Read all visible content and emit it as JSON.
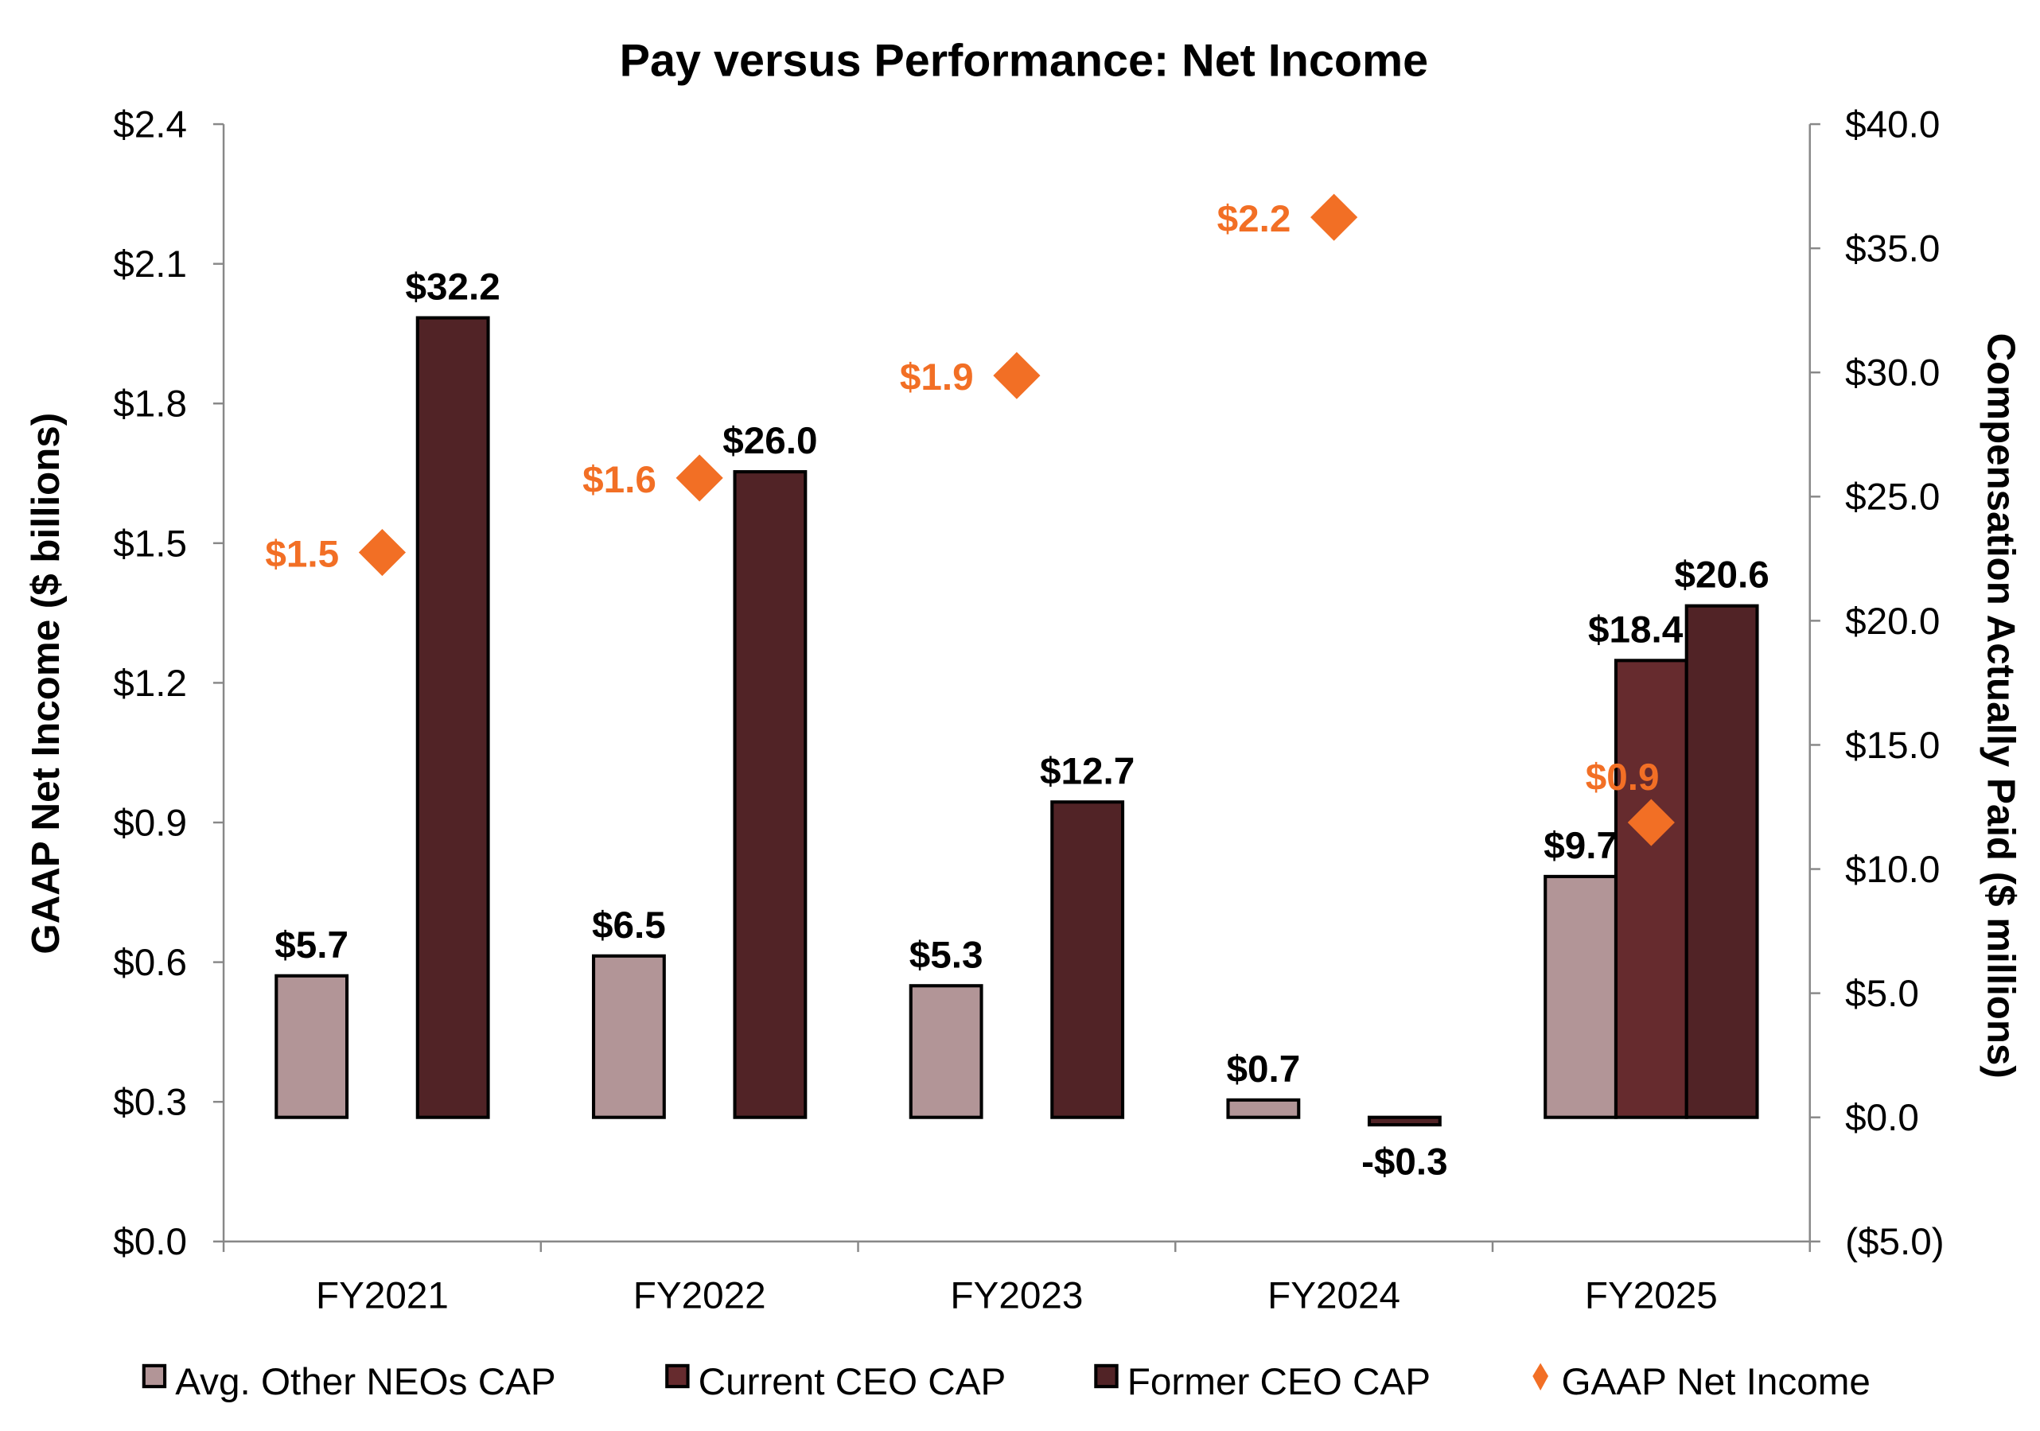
{
  "chart_data": {
    "type": "bar",
    "title": "Pay versus Performance: Net Income",
    "categories": [
      "FY2021",
      "FY2022",
      "FY2023",
      "FY2024",
      "FY2025"
    ],
    "y_left": {
      "label": "GAAP Net Income ($ billions)",
      "range": [
        0,
        2.4
      ],
      "ticks": [
        "$0.0",
        "$0.3",
        "$0.6",
        "$0.9",
        "$1.2",
        "$1.5",
        "$1.8",
        "$2.1",
        "$2.4"
      ]
    },
    "y_right": {
      "label": "Compensation Actually Paid ($ millions)",
      "range": [
        -5,
        40
      ],
      "ticks": [
        "($5.0)",
        "$0.0",
        "$5.0",
        "$10.0",
        "$15.0",
        "$20.0",
        "$25.0",
        "$30.0",
        "$35.0",
        "$40.0"
      ]
    },
    "series": [
      {
        "name": "Avg. Other NEOs CAP",
        "type": "bar",
        "axis": "right",
        "color": "#b29597",
        "values": [
          5.7,
          6.5,
          5.3,
          0.7,
          9.7
        ],
        "labels": [
          "$5.7",
          "$6.5",
          "$5.3",
          "$0.7",
          "$9.7"
        ]
      },
      {
        "name": "Current CEO CAP",
        "type": "bar",
        "axis": "right",
        "color": "#662b2e",
        "values": [
          null,
          null,
          null,
          null,
          18.4
        ],
        "labels": [
          null,
          null,
          null,
          null,
          "$18.4"
        ]
      },
      {
        "name": "Former CEO CAP",
        "type": "bar",
        "axis": "right",
        "color": "#512326",
        "values": [
          32.2,
          26.0,
          12.7,
          -0.3,
          20.6
        ],
        "labels": [
          "$32.2",
          "$26.0",
          "$12.7",
          "-$0.3",
          "$20.6"
        ]
      },
      {
        "name": "GAAP Net Income",
        "type": "scatter",
        "marker": "diamond",
        "axis": "left",
        "color": "#f26f25",
        "values": [
          1.48,
          1.64,
          1.86,
          2.2,
          0.9
        ],
        "labels": [
          "$1.5",
          "$1.6",
          "$1.9",
          "$2.2",
          "$0.9"
        ]
      }
    ],
    "grid": false,
    "legend": "bottom"
  }
}
